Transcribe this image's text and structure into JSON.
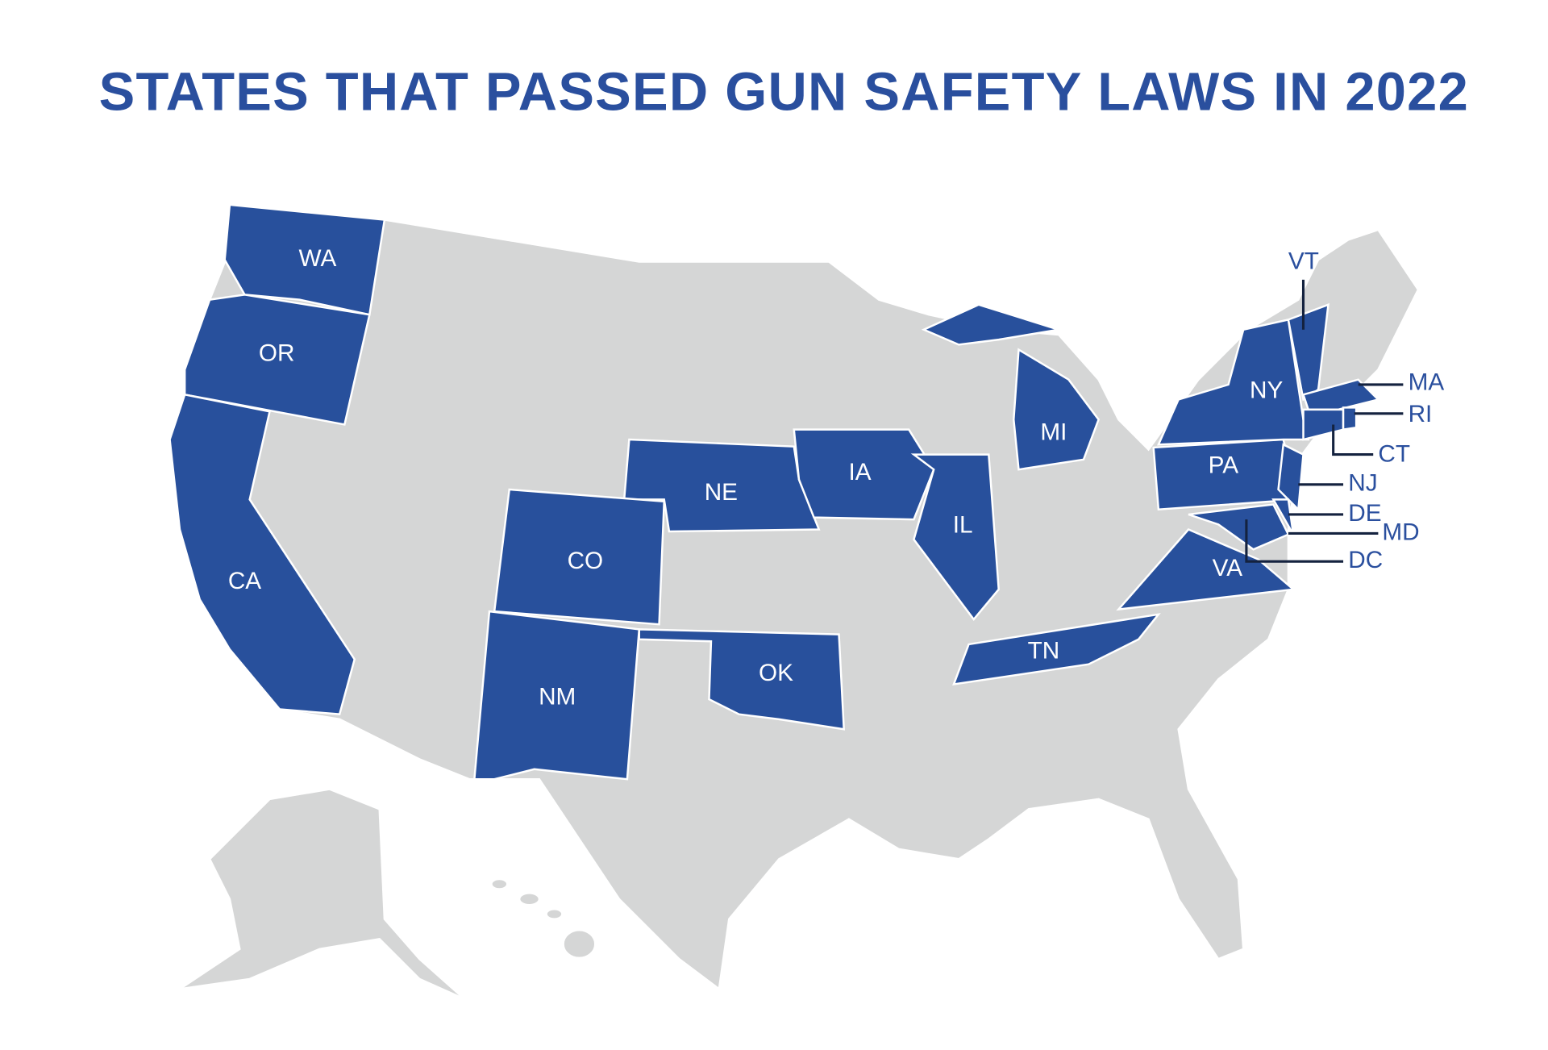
{
  "title": "STATES THAT PASSED GUN SAFETY LAWS IN 2022",
  "states": [
    {
      "label": "WA"
    },
    {
      "label": "OR"
    },
    {
      "label": "CA"
    },
    {
      "label": "NE"
    },
    {
      "label": "CO"
    },
    {
      "label": "NM"
    },
    {
      "label": "OK"
    },
    {
      "label": "IA"
    },
    {
      "label": "IL"
    },
    {
      "label": "MI"
    },
    {
      "label": "TN"
    },
    {
      "label": "VA"
    },
    {
      "label": "PA"
    },
    {
      "label": "NY"
    },
    {
      "label": "VT"
    },
    {
      "label": "MA"
    },
    {
      "label": "RI"
    },
    {
      "label": "CT"
    },
    {
      "label": "NJ"
    },
    {
      "label": "DE"
    },
    {
      "label": "MD"
    },
    {
      "label": "DC"
    }
  ]
}
